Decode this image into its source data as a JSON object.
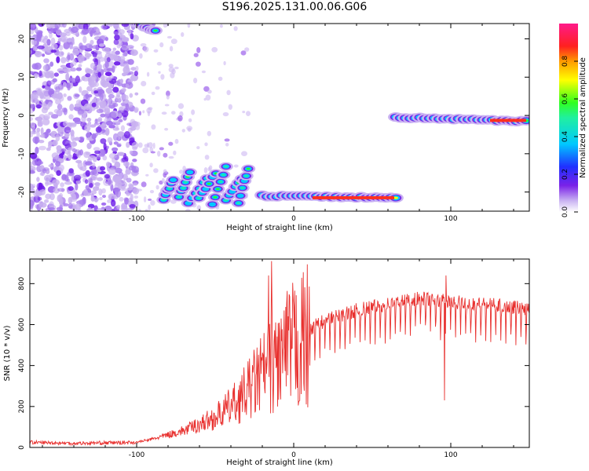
{
  "title": "S196.2025.131.00.06.G06",
  "colors": {
    "snr_line": "#e8302e",
    "axis": "#000000",
    "speckle": "#c8b0f0",
    "speckle_dark": "#6a18e8"
  },
  "chart_data": [
    {
      "type": "heatmap",
      "xlabel": "Height of straight line (km)",
      "ylabel": "Frequency (Hz)",
      "xlim": [
        -168,
        150
      ],
      "ylim": [
        -25,
        24
      ],
      "xticks": [
        -100,
        0,
        100
      ],
      "xtick_labels": [
        "-100",
        "0",
        "100"
      ],
      "yticks": [
        -20,
        -10,
        0,
        10,
        20
      ],
      "ytick_labels": [
        "-20",
        "-10",
        "0",
        "10",
        "20"
      ],
      "grid": false,
      "colorbar": {
        "label": "Normalized spectral amplitude",
        "range": [
          0,
          1
        ],
        "ticks": [
          0.0,
          0.2,
          0.4,
          0.6,
          0.8
        ],
        "tick_labels": [
          "0.0",
          "0.2",
          "0.4",
          "0.6",
          "0.8"
        ],
        "colormap": "rainbow (white-violet-blue-cyan-green-yellow-red-magenta)"
      },
      "tracks": [
        {
          "name": "",
          "x_range": [
            -100,
            -88
          ],
          "freq_range": [
            24,
            22
          ],
          "peak_amplitude": 0.7
        },
        {
          "name": "",
          "x_range": [
            -85,
            -25
          ],
          "freq_range": [
            -24,
            -14
          ],
          "peak_amplitude": 0.6
        },
        {
          "name": "",
          "x_range": [
            -20,
            65
          ],
          "freq_range": [
            -21,
            -21.5
          ],
          "peak_amplitude": 0.85
        },
        {
          "name": "",
          "x_range": [
            65,
            148
          ],
          "freq_range": [
            -0.5,
            -1.5
          ],
          "peak_amplitude": 0.85
        }
      ]
    },
    {
      "type": "line",
      "xlabel": "Height of straight line (km)",
      "ylabel": "SNR (10 * v/v)",
      "xlim": [
        -168,
        150
      ],
      "ylim": [
        0,
        920
      ],
      "xticks": [
        -100,
        0,
        100
      ],
      "xtick_labels": [
        "-100",
        "0",
        "100"
      ],
      "yticks": [
        0,
        200,
        400,
        600,
        800
      ],
      "ytick_labels": [
        "0",
        "200",
        "400",
        "600",
        "800"
      ],
      "grid": false,
      "series": [
        {
          "name": "",
          "envelope_points": [
            {
              "x": -168,
              "y": 25
            },
            {
              "x": -140,
              "y": 20
            },
            {
              "x": -100,
              "y": 25
            },
            {
              "x": -90,
              "y": 40
            },
            {
              "x": -70,
              "y": 80
            },
            {
              "x": -50,
              "y": 140
            },
            {
              "x": -35,
              "y": 220
            },
            {
              "x": -25,
              "y": 300
            },
            {
              "x": -15,
              "y": 380
            },
            {
              "x": 0,
              "y": 460
            },
            {
              "x": 20,
              "y": 540
            },
            {
              "x": 40,
              "y": 590
            },
            {
              "x": 60,
              "y": 620
            },
            {
              "x": 80,
              "y": 650
            },
            {
              "x": 100,
              "y": 630
            },
            {
              "x": 120,
              "y": 620
            },
            {
              "x": 150,
              "y": 600
            }
          ],
          "spikes": [
            {
              "x": -14,
              "y": 910
            },
            {
              "x": -16,
              "y": 840
            },
            {
              "x": 97,
              "y": 840
            },
            {
              "x": 96,
              "y": 230
            }
          ]
        }
      ]
    }
  ]
}
